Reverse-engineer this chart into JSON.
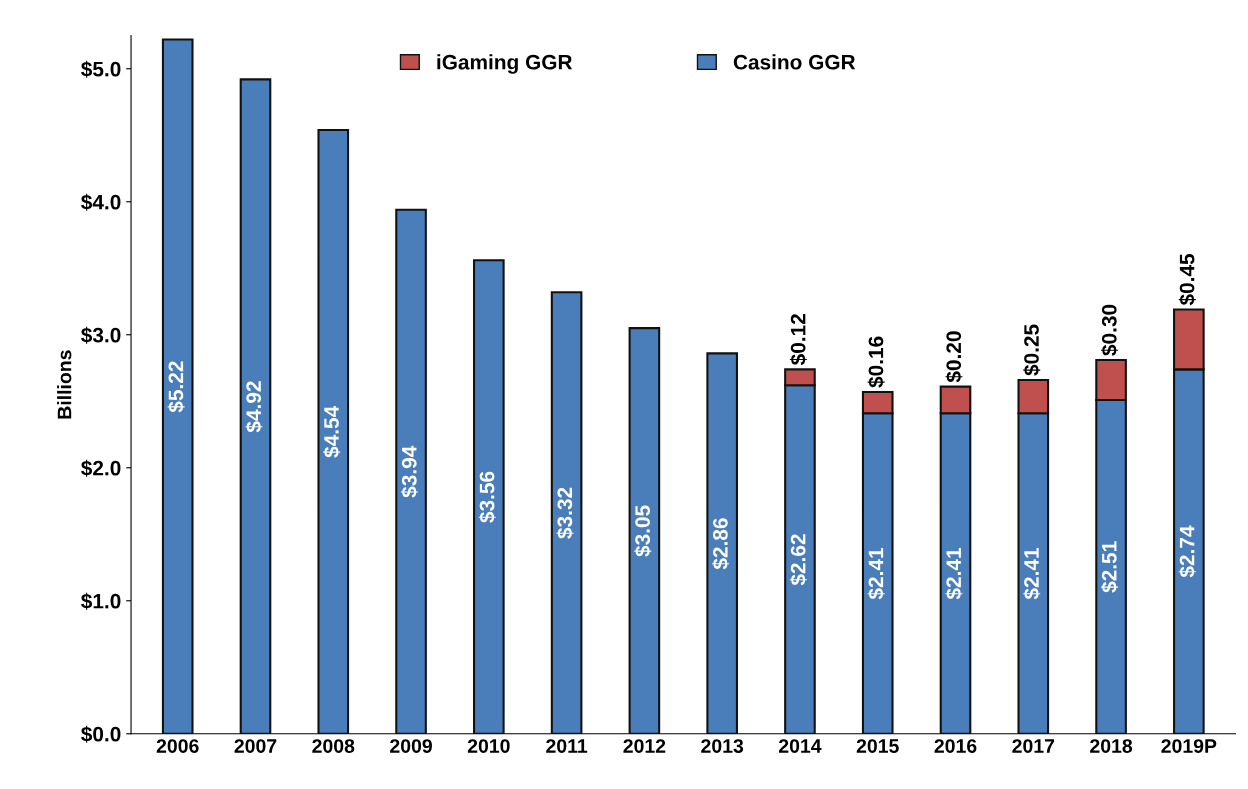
{
  "chart_data": {
    "type": "bar",
    "stacked": true,
    "ylabel": "Billions",
    "categories": [
      "2006",
      "2007",
      "2008",
      "2009",
      "2010",
      "2011",
      "2012",
      "2013",
      "2014",
      "2015",
      "2016",
      "2017",
      "2018",
      "2019P"
    ],
    "series": [
      {
        "name": "Casino GGR",
        "color": "#4a7ebb",
        "values": [
          5.22,
          4.92,
          4.54,
          3.94,
          3.56,
          3.32,
          3.05,
          2.86,
          2.62,
          2.41,
          2.41,
          2.41,
          2.51,
          2.74
        ],
        "value_labels": [
          "$5.22",
          "$4.92",
          "$4.54",
          "$3.94",
          "$3.56",
          "$3.32",
          "$3.05",
          "$2.86",
          "$2.62",
          "$2.41",
          "$2.41",
          "$2.41",
          "$2.51",
          "$2.74"
        ]
      },
      {
        "name": "iGaming GGR",
        "color": "#c0504d",
        "values": [
          null,
          null,
          null,
          null,
          null,
          null,
          null,
          null,
          0.12,
          0.16,
          0.2,
          0.25,
          0.3,
          0.45
        ],
        "value_labels": [
          null,
          null,
          null,
          null,
          null,
          null,
          null,
          null,
          "$0.12",
          "$0.16",
          "$0.20",
          "$0.25",
          "$0.30",
          "$0.45"
        ]
      }
    ],
    "ylim": [
      0,
      5.25
    ],
    "yticks": [
      {
        "value": 0,
        "label": "$0.0"
      },
      {
        "value": 1,
        "label": "$1.0"
      },
      {
        "value": 2,
        "label": "$2.0"
      },
      {
        "value": 3,
        "label": "$3.0"
      },
      {
        "value": 4,
        "label": "$4.0"
      },
      {
        "value": 5,
        "label": "$5.0"
      }
    ],
    "grid": false,
    "legend": "top"
  }
}
